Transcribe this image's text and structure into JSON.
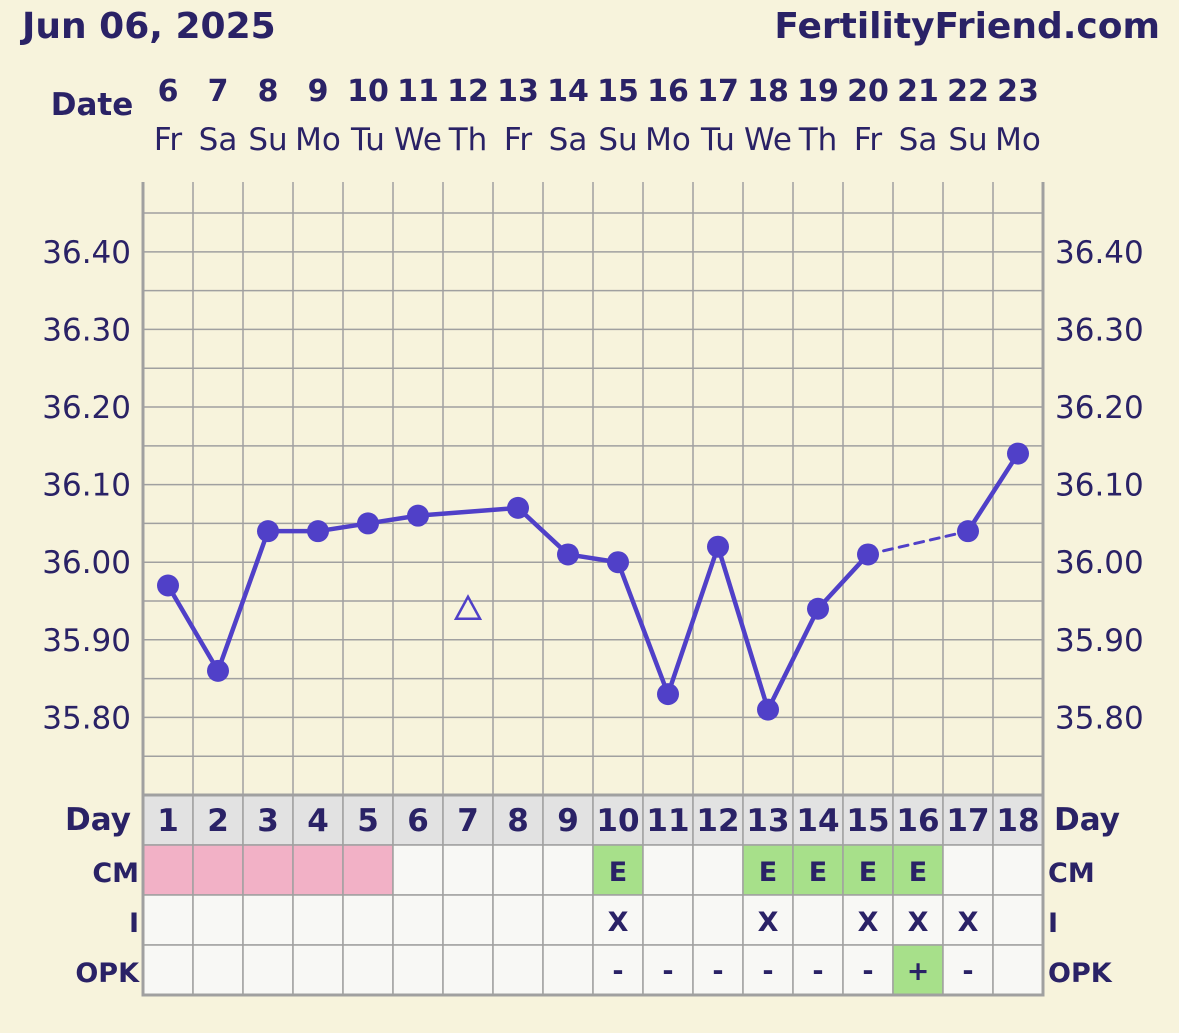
{
  "header": {
    "date": "Jun 06, 2025",
    "brand": "FertilityFriend.com"
  },
  "row_labels": {
    "date": "Date",
    "day": "Day",
    "cm": "CM",
    "intercourse": "I",
    "opk": "OPK"
  },
  "colors": {
    "background": "#F7F3DC",
    "text": "#2A2266",
    "line": "#5040C8",
    "grid": "#A0A0A0",
    "day_cell": "#E2E2E2",
    "cell": "#F8F8F5",
    "period": "#F2B1C6",
    "fertile": "#A7E08A"
  },
  "dates": [
    "6",
    "7",
    "8",
    "9",
    "10",
    "11",
    "12",
    "13",
    "14",
    "15",
    "16",
    "17",
    "18",
    "19",
    "20",
    "21",
    "22",
    "23"
  ],
  "weekdays": [
    "Fr",
    "Sa",
    "Su",
    "Mo",
    "Tu",
    "We",
    "Th",
    "Fr",
    "Sa",
    "Su",
    "Mo",
    "Tu",
    "We",
    "Th",
    "Fr",
    "Sa",
    "Su",
    "Mo"
  ],
  "cycle_days": [
    "1",
    "2",
    "3",
    "4",
    "5",
    "6",
    "7",
    "8",
    "9",
    "10",
    "11",
    "12",
    "13",
    "14",
    "15",
    "16",
    "17",
    "18"
  ],
  "chart_data": {
    "type": "line",
    "x_label": "Day",
    "y_tick_labels": [
      "36.40",
      "36.30",
      "36.20",
      "36.10",
      "36.00",
      "35.90",
      "35.80"
    ],
    "y_range": [
      35.7,
      36.49
    ],
    "y_grid_step": 0.05,
    "grid": true,
    "series": [
      {
        "values": [
          35.97,
          35.86,
          36.04,
          36.04,
          36.05,
          36.06,
          35.94,
          36.07,
          36.01,
          36.0,
          35.83,
          36.02,
          35.81,
          35.94,
          36.01,
          null,
          36.04,
          36.14
        ],
        "markers": [
          "dot",
          "dot",
          "dot",
          "dot",
          "dot",
          "dot",
          "open-triangle",
          "dot",
          "dot",
          "dot",
          "dot",
          "dot",
          "dot",
          "dot",
          "dot",
          "none",
          "dot",
          "dot"
        ],
        "excluded_from_line": [
          7
        ],
        "interpolated_gap_after_day": 15
      }
    ]
  },
  "cm": [
    "",
    "",
    "",
    "",
    "",
    "",
    "",
    "",
    "",
    "E",
    "",
    "",
    "E",
    "E",
    "E",
    "E",
    "",
    ""
  ],
  "cm_style": [
    "period",
    "period",
    "period",
    "period",
    "period",
    "",
    "",
    "",
    "",
    "fertile",
    "",
    "",
    "fertile",
    "fertile",
    "fertile",
    "fertile",
    "",
    ""
  ],
  "intercourse": [
    "",
    "",
    "",
    "",
    "",
    "",
    "",
    "",
    "",
    "X",
    "",
    "",
    "X",
    "",
    "X",
    "X",
    "X",
    ""
  ],
  "opk": [
    "",
    "",
    "",
    "",
    "",
    "",
    "",
    "",
    "",
    "-",
    "-",
    "-",
    "-",
    "-",
    "-",
    "+",
    "-",
    ""
  ],
  "opk_style": [
    "",
    "",
    "",
    "",
    "",
    "",
    "",
    "",
    "",
    "",
    "",
    "",
    "",
    "",
    "",
    "fertile",
    "",
    ""
  ]
}
